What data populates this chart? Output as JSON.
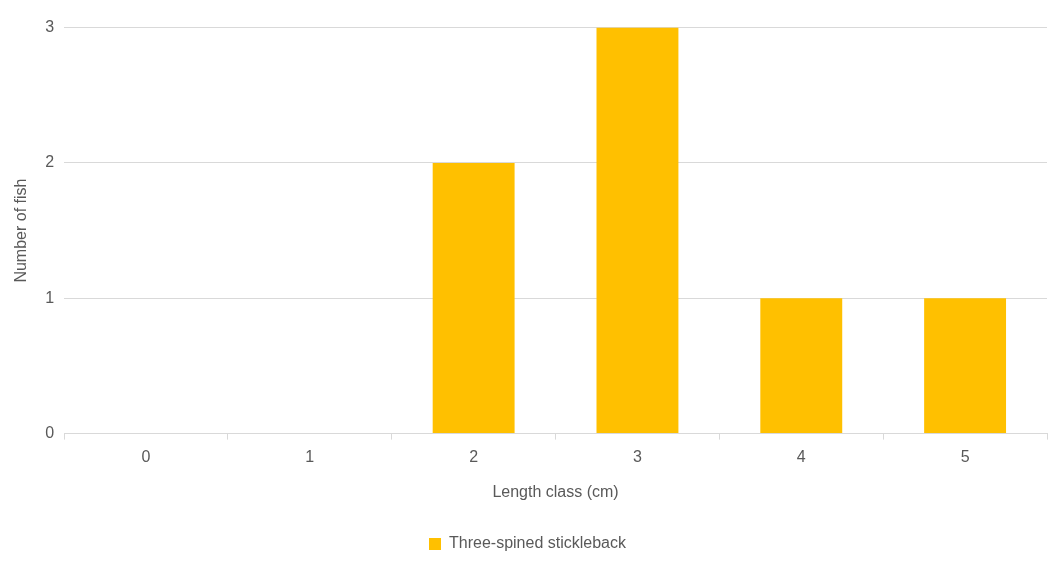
{
  "chart_data": {
    "type": "bar",
    "xlabel": "Length class (cm)",
    "ylabel": "Number of fish",
    "categories": [
      "0",
      "1",
      "2",
      "3",
      "4",
      "5"
    ],
    "series": [
      {
        "name": "Three-spined stickleback",
        "color": "#ffc000",
        "values": [
          0,
          0,
          2,
          3,
          1,
          1
        ]
      }
    ],
    "ylim": [
      0,
      3
    ],
    "yticks": [
      0,
      1,
      2,
      3
    ],
    "grid": "y",
    "legend": "bottom"
  }
}
